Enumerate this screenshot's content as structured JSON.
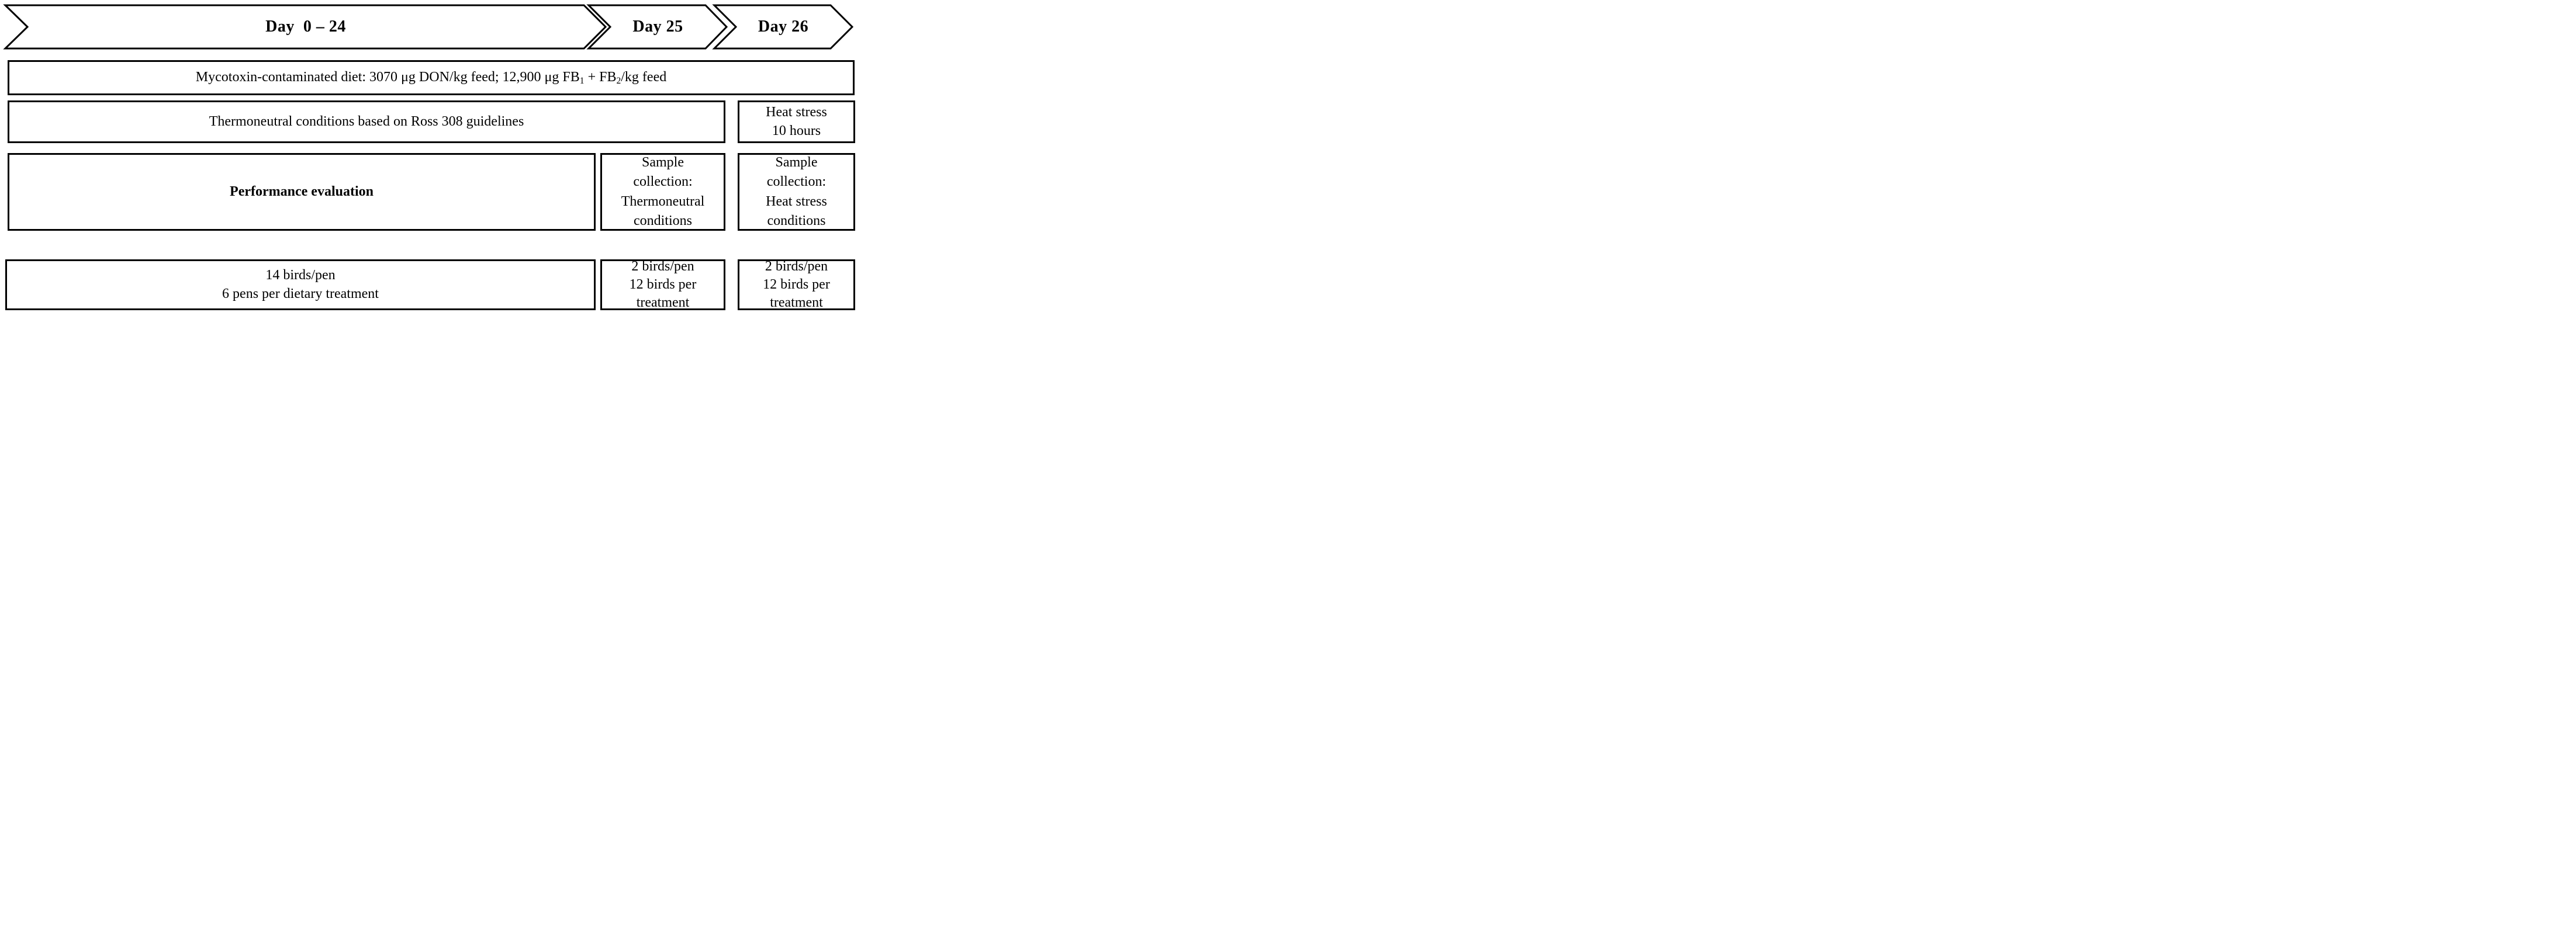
{
  "figure_title": "Experimental design timeline diagram",
  "colors": {
    "ink": "#000000",
    "background": "#ffffff"
  },
  "timeline": {
    "phases": [
      {
        "id": "day-0-24",
        "label": "Day  0 – 24"
      },
      {
        "id": "day-25",
        "label": "Day 25"
      },
      {
        "id": "day-26",
        "label": "Day 26"
      }
    ]
  },
  "diet_row": {
    "segments": [
      {
        "text": "Mycotoxin-contaminated diet: 3070 μg DON/kg feed; 12,900 μg FB"
      },
      {
        "text": "1",
        "sub": true
      },
      {
        "text": " + FB"
      },
      {
        "text": "2",
        "sub": true
      },
      {
        "text": "/kg feed"
      }
    ]
  },
  "environment_row": {
    "thermoneutral": {
      "lines": [
        "Thermoneutral conditions based on Ross 308 guidelines"
      ]
    },
    "heat_stress": {
      "lines": [
        "Heat stress",
        "10 hours"
      ]
    }
  },
  "evaluation_row": {
    "performance": {
      "lines": [
        "Performance evaluation"
      ]
    },
    "sample_thermoneutral": {
      "lines": [
        "Sample",
        "collection:",
        "Thermoneutral",
        "conditions"
      ]
    },
    "sample_heat_stress": {
      "lines": [
        "Sample",
        "collection:",
        "Heat stress",
        "conditions"
      ]
    }
  },
  "birds_row": {
    "main": {
      "lines": [
        "14 birds/pen",
        "6 pens per dietary treatment"
      ]
    },
    "day25": {
      "lines": [
        "2 birds/pen",
        "12 birds per",
        "treatment"
      ]
    },
    "day26": {
      "lines": [
        "2 birds/pen",
        "12 birds per",
        "treatment"
      ]
    }
  }
}
